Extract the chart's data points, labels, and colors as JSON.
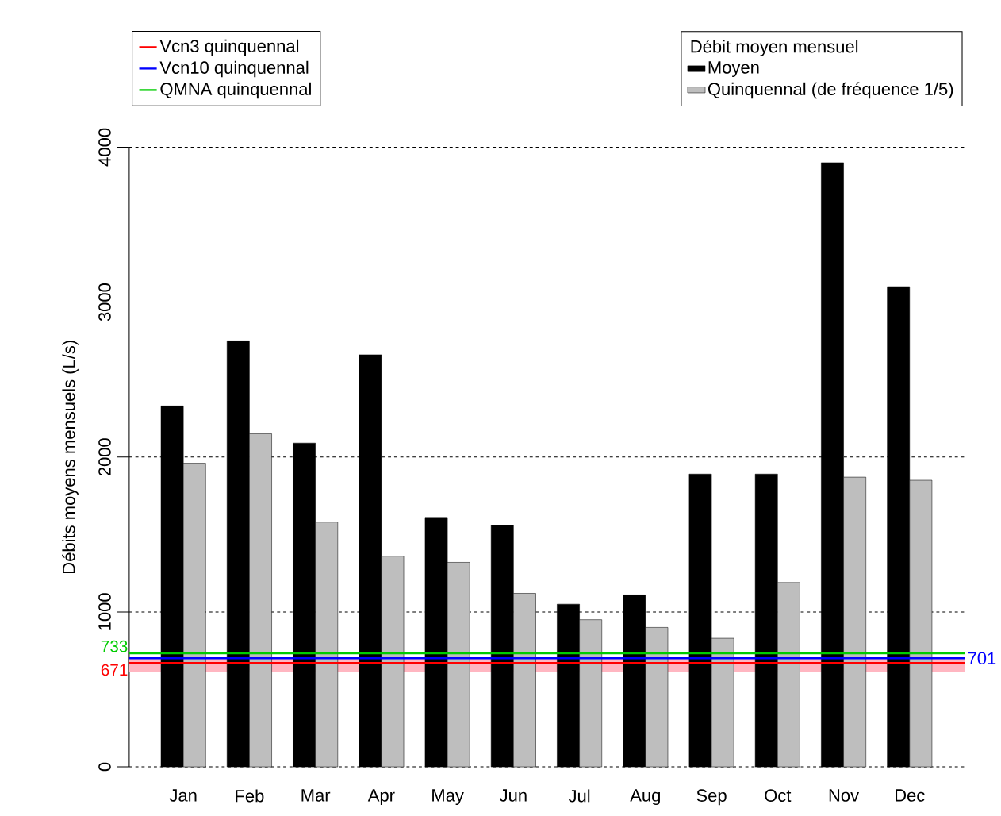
{
  "chart_data": {
    "type": "bar",
    "ylabel": "Débits moyens mensuels (L/s)",
    "legend_title": "Débit moyen mensuel",
    "categories": [
      "Jan",
      "Feb",
      "Mar",
      "Apr",
      "May",
      "Jun",
      "Jul",
      "Aug",
      "Sep",
      "Oct",
      "Nov",
      "Dec"
    ],
    "series": [
      {
        "name": "Moyen",
        "color": "#000000",
        "values": [
          2330,
          2750,
          2090,
          2660,
          1610,
          1560,
          1050,
          1110,
          1890,
          1890,
          3900,
          3100
        ]
      },
      {
        "name": "Quinquennal (de fréquence 1/5)",
        "color": "#bebebe",
        "values": [
          1960,
          2150,
          1580,
          1360,
          1320,
          1120,
          950,
          900,
          830,
          1190,
          1870,
          1850
        ]
      }
    ],
    "ylim": [
      0,
      4000
    ],
    "yticks": [
      0,
      1000,
      2000,
      3000,
      4000
    ],
    "grid": "y",
    "legend": "top",
    "ref_lines": [
      {
        "axis": "y",
        "value": 671,
        "label": "Vcn3 quinquennal",
        "color": "#ff0000"
      },
      {
        "axis": "y",
        "value": 701,
        "label": "Vcn10 quinquennal",
        "color": "#0000ff"
      },
      {
        "axis": "y",
        "value": 733,
        "label": "QMNA quinquennal",
        "color": "#00cc00"
      }
    ],
    "bands": [
      {
        "axis": "y",
        "from": 610,
        "to": 700,
        "color": "#ffb6c1"
      }
    ],
    "annotations": [
      "671",
      "701",
      "733"
    ]
  }
}
